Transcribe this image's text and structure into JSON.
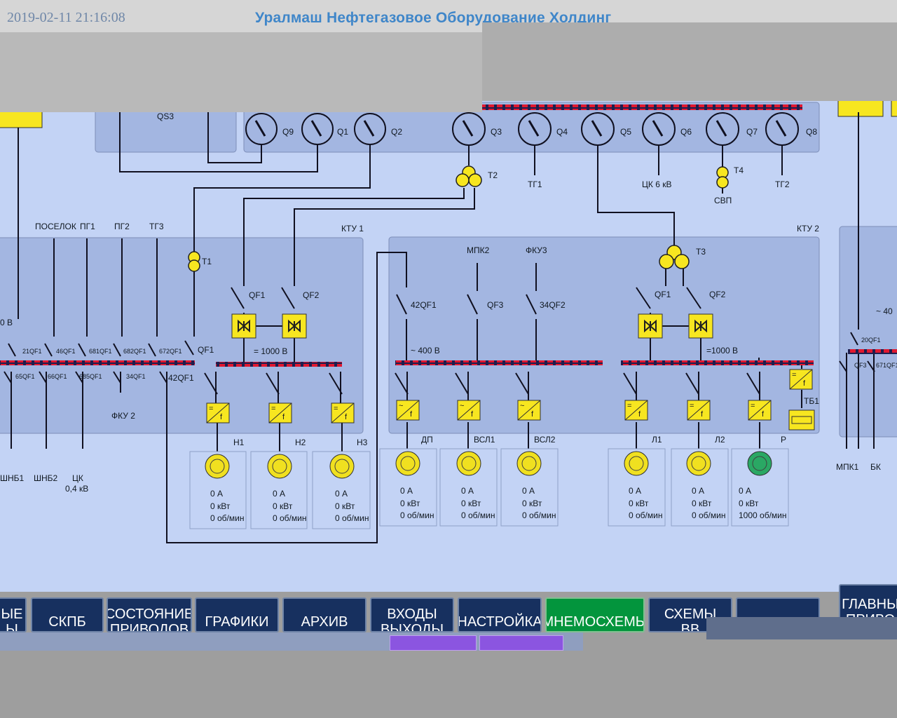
{
  "header": {
    "datetime": "2019-02-11 21:16:08",
    "company": "Уралмаш Нефтегазовое Оборудование Холдинг"
  },
  "labels": {
    "qs3": "QS3",
    "q9": "Q9",
    "q1": "Q1",
    "q2": "Q2",
    "q3": "Q3",
    "q4": "Q4",
    "q5": "Q5",
    "q6": "Q6",
    "q7": "Q7",
    "q8": "Q8",
    "t2": "T2",
    "tg1": "ТГ1",
    "ck6": "ЦК 6 кВ",
    "t4": "T4",
    "svp": "СВП",
    "tg2": "ТГ2",
    "poselok": "ПОСЕЛОК",
    "pg1": "ПГ1",
    "pg2": "ПГ2",
    "tg3": "ТГ3",
    "ktu1": "КТУ 1",
    "ktu2": "КТУ 2",
    "t1": "T1",
    "t3": "T3",
    "qf1_a": "QF1",
    "qf2_a": "QF2",
    "qf1_b": "QF1",
    "qf2_b": "QF2",
    "qf1_c": "QF1",
    "qf42_a": "42QF1",
    "qf3": "QF3",
    "qf34_a": "34QF2",
    "mpk2": "МПК2",
    "fku3": "ФКУ3",
    "v1000_a": "= 1000 В",
    "v400": "~ 400 В",
    "v1000_b": "=1000 В",
    "v0": "0 В",
    "v400_r": "~ 40",
    "qf21": "21QF1",
    "qf46": "46QF1",
    "qf681": "681QF1",
    "qf682": "682QF1",
    "qf672": "672QF1",
    "qf65": "65QF1",
    "qf66": "66QF1",
    "qf685": "685QF1",
    "qf34_b": "34QF1",
    "qf42_b": "42QF1",
    "fku2": "ФКУ 2",
    "shnb1": "ШНБ1",
    "shnb2": "ШНБ2",
    "ck04_1": "ЦК",
    "ck04_2": "0,4 кВ",
    "tb1": "ТБ1",
    "qf20": "20QF1",
    "qf3_r": "QF3",
    "qf671": "671QF1",
    "mpk1": "МПК1",
    "bk": "БК"
  },
  "drives": [
    {
      "name": "Н1",
      "current": "0 А",
      "power": "0 кВт",
      "speed": "0 об/мин",
      "state_color": "#f0e020"
    },
    {
      "name": "Н2",
      "current": "0 А",
      "power": "0 кВт",
      "speed": "0 об/мин",
      "state_color": "#f0e020"
    },
    {
      "name": "Н3",
      "current": "0 А",
      "power": "0 кВт",
      "speed": "0 об/мин",
      "state_color": "#f0e020"
    },
    {
      "name": "ДП",
      "current": "0 А",
      "power": "0 кВт",
      "speed": "0 об/мин",
      "state_color": "#f0e020"
    },
    {
      "name": "ВСЛ1",
      "current": "0 А",
      "power": "0 кВт",
      "speed": "0 об/мин",
      "state_color": "#f0e020"
    },
    {
      "name": "ВСЛ2",
      "current": "0 А",
      "power": "0 кВт",
      "speed": "0 об/мин",
      "state_color": "#f0e020"
    },
    {
      "name": "Л1",
      "current": "0 А",
      "power": "0 кВт",
      "speed": "0 об/мин",
      "state_color": "#f0e020"
    },
    {
      "name": "Л2",
      "current": "0 А",
      "power": "0 кВт",
      "speed": "0 об/мин",
      "state_color": "#f0e020"
    },
    {
      "name": "Р",
      "current": "0 А",
      "power": "0 кВт",
      "speed": "1000 об/мин",
      "state_color": "#2aa864"
    }
  ],
  "nav": [
    {
      "label": "ЫЕ\nЫ"
    },
    {
      "label": "СКПБ"
    },
    {
      "label": "СОСТОЯНИЕ\nПРИВОДОВ"
    },
    {
      "label": "ГРАФИКИ"
    },
    {
      "label": "АРХИВ"
    },
    {
      "label": "ВХОДЫ\nВЫХОДЫ"
    },
    {
      "label": "НАСТРОЙКА"
    },
    {
      "label": "МНЕМОСХЕМЫ",
      "active": true
    },
    {
      "label": "СХЕМЫ\nВВ"
    },
    {
      "label": ""
    },
    {
      "label": "ГЛАВНЫ\nПРИВО"
    }
  ],
  "colors": {
    "canvas": "#c3d3f5",
    "panel": "#a3b6e1",
    "bus_red": "#e01830",
    "bus_dark": "#202050",
    "symbol_yellow": "#f7e620",
    "nav_bg": "#17305f",
    "nav_active": "#03953d"
  }
}
